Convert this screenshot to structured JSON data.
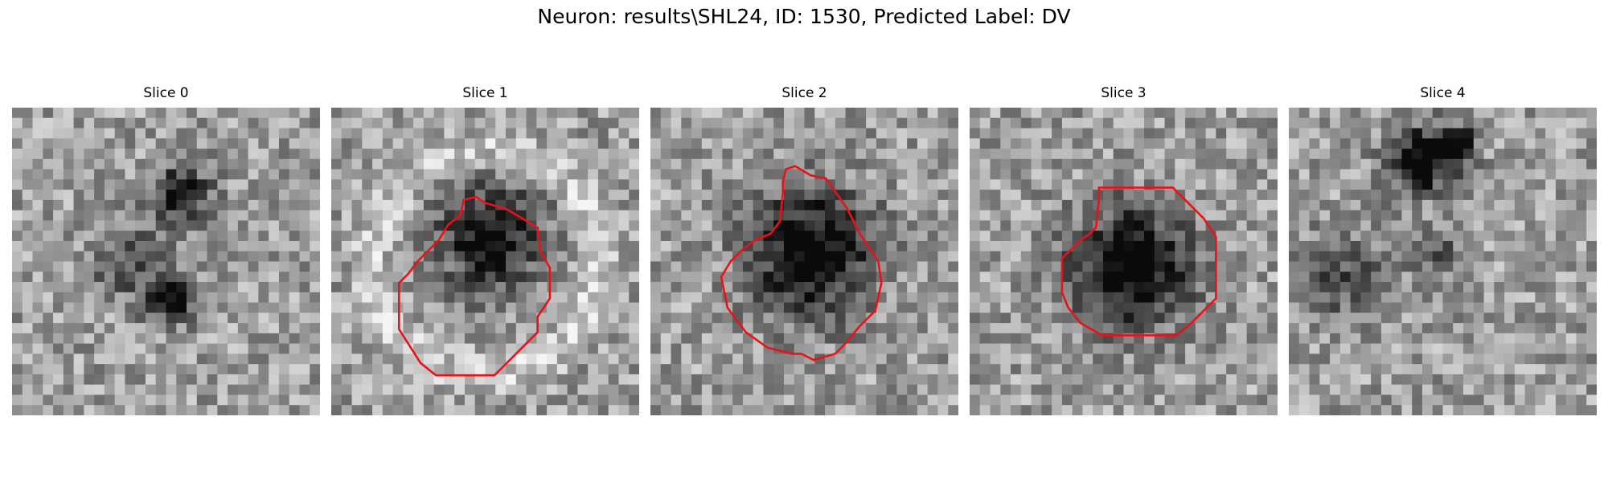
{
  "figure": {
    "suptitle": "Neuron: results\\SHL24, ID: 1530, Predicted Label: DV",
    "outline_color": "#e8121a",
    "colormap": "grayscale"
  },
  "panels": [
    {
      "title": "Slice 0",
      "seed": 11,
      "blobs": [
        [
          0.55,
          0.28,
          0.12,
          0.55
        ],
        [
          0.52,
          0.62,
          0.1,
          0.6
        ],
        [
          0.38,
          0.5,
          0.14,
          0.35
        ]
      ],
      "outline": null
    },
    {
      "title": "Slice 1",
      "seed": 23,
      "blobs": [
        [
          0.52,
          0.42,
          0.22,
          0.6
        ]
      ],
      "ring": [
        0.5,
        0.5,
        0.52,
        0.18
      ],
      "outline": [
        [
          0.47,
          0.29
        ],
        [
          0.5,
          0.31
        ],
        [
          0.57,
          0.33
        ],
        [
          0.67,
          0.39
        ],
        [
          0.68,
          0.47
        ],
        [
          0.71,
          0.52
        ],
        [
          0.71,
          0.62
        ],
        [
          0.67,
          0.68
        ],
        [
          0.67,
          0.73
        ],
        [
          0.59,
          0.81
        ],
        [
          0.53,
          0.87
        ],
        [
          0.34,
          0.87
        ],
        [
          0.29,
          0.83
        ],
        [
          0.22,
          0.72
        ],
        [
          0.22,
          0.57
        ],
        [
          0.25,
          0.54
        ],
        [
          0.28,
          0.5
        ],
        [
          0.31,
          0.47
        ],
        [
          0.35,
          0.43
        ],
        [
          0.38,
          0.38
        ],
        [
          0.42,
          0.35
        ],
        [
          0.43,
          0.3
        ]
      ]
    },
    {
      "title": "Slice 2",
      "seed": 37,
      "blobs": [
        [
          0.52,
          0.47,
          0.25,
          0.7
        ]
      ],
      "outline": [
        [
          0.43,
          0.24
        ],
        [
          0.44,
          0.2
        ],
        [
          0.47,
          0.19
        ],
        [
          0.52,
          0.22
        ],
        [
          0.57,
          0.23
        ],
        [
          0.64,
          0.33
        ],
        [
          0.68,
          0.41
        ],
        [
          0.74,
          0.5
        ],
        [
          0.75,
          0.57
        ],
        [
          0.73,
          0.66
        ],
        [
          0.68,
          0.71
        ],
        [
          0.63,
          0.77
        ],
        [
          0.6,
          0.8
        ],
        [
          0.53,
          0.82
        ],
        [
          0.49,
          0.8
        ],
        [
          0.46,
          0.8
        ],
        [
          0.38,
          0.78
        ],
        [
          0.31,
          0.73
        ],
        [
          0.25,
          0.65
        ],
        [
          0.23,
          0.55
        ],
        [
          0.26,
          0.5
        ],
        [
          0.3,
          0.46
        ],
        [
          0.34,
          0.43
        ],
        [
          0.39,
          0.41
        ],
        [
          0.42,
          0.37
        ],
        [
          0.43,
          0.28
        ]
      ]
    },
    {
      "title": "Slice 3",
      "seed": 53,
      "blobs": [
        [
          0.52,
          0.52,
          0.24,
          0.72
        ]
      ],
      "outline": [
        [
          0.42,
          0.26
        ],
        [
          0.66,
          0.26
        ],
        [
          0.76,
          0.36
        ],
        [
          0.8,
          0.42
        ],
        [
          0.8,
          0.62
        ],
        [
          0.72,
          0.7
        ],
        [
          0.67,
          0.74
        ],
        [
          0.43,
          0.74
        ],
        [
          0.36,
          0.7
        ],
        [
          0.32,
          0.65
        ],
        [
          0.3,
          0.6
        ],
        [
          0.3,
          0.49
        ],
        [
          0.36,
          0.43
        ],
        [
          0.39,
          0.41
        ],
        [
          0.41,
          0.39
        ],
        [
          0.42,
          0.3
        ]
      ]
    },
    {
      "title": "Slice 4",
      "seed": 71,
      "blobs": [
        [
          0.43,
          0.17,
          0.13,
          0.75
        ],
        [
          0.55,
          0.12,
          0.08,
          0.5
        ],
        [
          0.18,
          0.55,
          0.18,
          0.3
        ],
        [
          0.5,
          0.48,
          0.1,
          0.25
        ]
      ],
      "outline": null
    }
  ]
}
